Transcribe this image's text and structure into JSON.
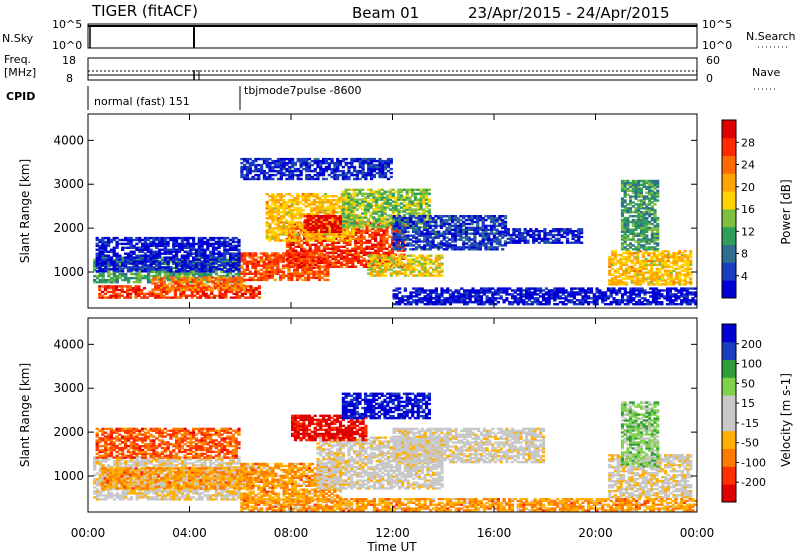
{
  "header": {
    "title": "TIGER (fitACF)",
    "beam": "Beam 01",
    "date_range": "23/Apr/2015 - 24/Apr/2015"
  },
  "summary": {
    "nsky_label": "N.Sky",
    "nsearch_label": "N.Search",
    "freq_label_1": "Freq.",
    "freq_label_2": "[MHz]",
    "nave_label": "Nave",
    "cpid_label": "CPID",
    "nsky_ticks": [
      "10^5",
      "10^0"
    ],
    "nsearch_ticks": [
      "10^5",
      "10^0"
    ],
    "freq_ticks": [
      "18",
      "8"
    ],
    "nave_ticks": [
      "60",
      "0"
    ],
    "cpid_modes": [
      {
        "label": "normal (fast) 151",
        "start_hour": 0,
        "end_hour": 6
      },
      {
        "label": "tbjmode7pulse -8600",
        "start_hour": 6,
        "end_hour": 24
      }
    ]
  },
  "colors": {
    "power_scale": [
      "#0000d4",
      "#1a3dbf",
      "#2f6e8f",
      "#2f9e5a",
      "#7fbf3f",
      "#ffd400",
      "#ffa500",
      "#ff6a00",
      "#ff2a00",
      "#e00000"
    ],
    "velocity_scale": [
      "#e00000",
      "#ff3000",
      "#ff7a00",
      "#ffb000",
      "#c8c8c8",
      "#c8c8c8",
      "#7fd04a",
      "#2f9e3a",
      "#1a3dbf",
      "#0000d4"
    ]
  },
  "chart_data": [
    {
      "type": "heatmap",
      "panel": "power",
      "xlabel": "Time UT",
      "ylabel": "Slant Range [km]",
      "xlim": [
        0,
        24
      ],
      "ylim": [
        180,
        4600
      ],
      "x_ticks": [
        "00:00",
        "04:00",
        "08:00",
        "12:00",
        "16:00",
        "20:00",
        "00:00"
      ],
      "y_ticks": [
        1000,
        2000,
        3000,
        4000
      ],
      "colorbar": {
        "label": "Power [dB]",
        "range": [
          0,
          32
        ],
        "ticks": [
          4,
          8,
          12,
          16,
          20,
          24,
          28
        ]
      },
      "regions": [
        {
          "t": [
            0.2,
            6.0
          ],
          "r": [
            750,
            1350
          ],
          "level": 0.35
        },
        {
          "t": [
            0.4,
            6.8
          ],
          "r": [
            400,
            700
          ],
          "level": 0.85
        },
        {
          "t": [
            2.5,
            6.2
          ],
          "r": [
            580,
            900
          ],
          "level": 0.75
        },
        {
          "t": [
            6.0,
            9.5
          ],
          "r": [
            800,
            1450
          ],
          "level": 0.8
        },
        {
          "t": [
            7.8,
            12.5
          ],
          "r": [
            1100,
            2150
          ],
          "level": 0.85
        },
        {
          "t": [
            7.0,
            10.5
          ],
          "r": [
            1700,
            2800
          ],
          "level": 0.6
        },
        {
          "t": [
            8.5,
            10.0
          ],
          "r": [
            1900,
            2300
          ],
          "level": 0.95
        },
        {
          "t": [
            10.0,
            13.5
          ],
          "r": [
            2000,
            2900
          ],
          "level": 0.45
        },
        {
          "t": [
            12.0,
            16.5
          ],
          "r": [
            1500,
            2300
          ],
          "level": 0.15
        },
        {
          "t": [
            11.0,
            14.0
          ],
          "r": [
            900,
            1400
          ],
          "level": 0.55
        },
        {
          "t": [
            16.5,
            19.5
          ],
          "r": [
            1650,
            2000
          ],
          "level": 0.1
        },
        {
          "t": [
            20.5,
            23.8
          ],
          "r": [
            700,
            1500
          ],
          "level": 0.6
        },
        {
          "t": [
            21.0,
            22.5
          ],
          "r": [
            1500,
            3100
          ],
          "level": 0.35
        },
        {
          "t": [
            0.3,
            6.0
          ],
          "r": [
            1000,
            1800
          ],
          "level": 0.08
        },
        {
          "t": [
            12.0,
            24.0
          ],
          "r": [
            250,
            650
          ],
          "level": 0.05
        },
        {
          "t": [
            6.0,
            12.0
          ],
          "r": [
            3100,
            3600
          ],
          "level": 0.1
        }
      ]
    },
    {
      "type": "heatmap",
      "panel": "velocity",
      "xlabel": "Time UT",
      "ylabel": "Slant Range [km]",
      "xlim": [
        0,
        24
      ],
      "ylim": [
        180,
        4600
      ],
      "x_ticks": [
        "00:00",
        "04:00",
        "08:00",
        "12:00",
        "16:00",
        "20:00",
        "00:00"
      ],
      "y_ticks": [
        1000,
        2000,
        3000,
        4000
      ],
      "colorbar": {
        "label": "Velocity [m s-1]",
        "range": [
          -250,
          250
        ],
        "ticks": [
          200,
          100,
          50,
          15,
          -15,
          -50,
          -100,
          -200
        ]
      },
      "regions": [
        {
          "t": [
            0.2,
            6.0
          ],
          "r": [
            450,
            1450
          ],
          "level": 0.45
        },
        {
          "t": [
            0.5,
            6.5
          ],
          "r": [
            700,
            1200
          ],
          "level": 0.3
        },
        {
          "t": [
            6.0,
            10.0
          ],
          "r": [
            400,
            1300
          ],
          "level": 0.3
        },
        {
          "t": [
            9.0,
            14.0
          ],
          "r": [
            700,
            1900
          ],
          "level": 0.47
        },
        {
          "t": [
            12.0,
            18.0
          ],
          "r": [
            1300,
            2100
          ],
          "level": 0.47
        },
        {
          "t": [
            8.0,
            11.0
          ],
          "r": [
            1800,
            2400
          ],
          "level": 0.05
        },
        {
          "t": [
            10.0,
            13.5
          ],
          "r": [
            2300,
            2900
          ],
          "level": 0.95
        },
        {
          "t": [
            20.5,
            23.8
          ],
          "r": [
            500,
            1500
          ],
          "level": 0.45
        },
        {
          "t": [
            21.0,
            22.5
          ],
          "r": [
            1200,
            2700
          ],
          "level": 0.65
        },
        {
          "t": [
            6.0,
            24.0
          ],
          "r": [
            200,
            500
          ],
          "level": 0.3
        },
        {
          "t": [
            0.3,
            6.0
          ],
          "r": [
            1400,
            2100
          ],
          "level": 0.2
        }
      ]
    }
  ]
}
